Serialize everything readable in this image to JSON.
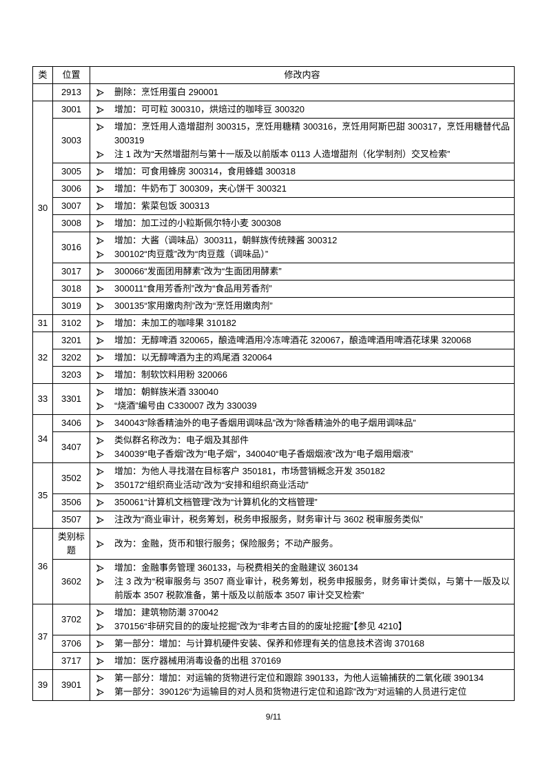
{
  "header": {
    "columns": [
      "类",
      "位置",
      "修改内容"
    ]
  },
  "groups": [
    {
      "class": null,
      "rows": [
        {
          "position": "2913",
          "items": [
            "删除：烹饪用蛋白 290001"
          ]
        }
      ]
    },
    {
      "class": "30",
      "rows": [
        {
          "position": "3001",
          "items": [
            "增加：可可粒 300310，烘焙过的咖啡豆 300320"
          ]
        },
        {
          "position": "3003",
          "items": [
            "增加：烹饪用人造增甜剂 300315，烹饪用糖精 300316，烹饪用阿斯巴甜 300317，烹饪用糖替代品 300319",
            "注 1 改为“天然增甜剂与第十一版及以前版本 0113 人造增甜剂（化学制剂）交叉检索”"
          ]
        },
        {
          "position": "3005",
          "items": [
            "增加：可食用蜂房 300314，食用蜂蜡 300318"
          ]
        },
        {
          "position": "3006",
          "items": [
            "增加：牛奶布丁 300309，夹心饼干 300321"
          ]
        },
        {
          "position": "3007",
          "items": [
            "增加：紫菜包饭 300313"
          ]
        },
        {
          "position": "3008",
          "items": [
            "增加：加工过的小粒斯佩尔特小麦 300308"
          ]
        },
        {
          "position": "3016",
          "items": [
            "增加：大酱（调味品）300311，朝鲜族传统辣酱 300312",
            "300102“肉豆蔻”改为“肉豆蔻（调味品）”"
          ]
        },
        {
          "position": "3017",
          "items": [
            "300066“发面团用酵素”改为“生面团用酵素”"
          ]
        },
        {
          "position": "3018",
          "items": [
            "300011“食用芳香剂”改为“食品用芳香剂”"
          ]
        },
        {
          "position": "3019",
          "items": [
            "300135“家用嫩肉剂”改为“烹饪用嫩肉剂”"
          ]
        }
      ]
    },
    {
      "class": "31",
      "rows": [
        {
          "position": "3102",
          "items": [
            "增加：未加工的咖啡果 310182"
          ]
        }
      ]
    },
    {
      "class": "32",
      "rows": [
        {
          "position": "3201",
          "items": [
            "增加：无醇啤酒 320065，酿造啤酒用冷冻啤酒花 320067，酿造啤酒用啤酒花球果 320068"
          ]
        },
        {
          "position": "3202",
          "items": [
            "增加：以无醇啤酒为主的鸡尾酒 320064"
          ]
        },
        {
          "position": "3203",
          "items": [
            "增加：制软饮料用粉 320066"
          ]
        }
      ]
    },
    {
      "class": "33",
      "rows": [
        {
          "position": "3301",
          "items": [
            "增加：朝鲜族米酒 330040",
            "“烧酒”编号由 C330007 改为 330039"
          ]
        }
      ]
    },
    {
      "class": "34",
      "rows": [
        {
          "position": "3406",
          "items": [
            "340043“除香精油外的电子香烟用调味品”改为“除香精油外的电子烟用调味品”"
          ]
        },
        {
          "position": "3407",
          "items": [
            "类似群名称改为：电子烟及其部件",
            "340039“电子香烟”改为“电子烟”，340040“电子香烟烟液”改为“电子烟用烟液”"
          ]
        }
      ]
    },
    {
      "class": "35",
      "rows": [
        {
          "position": "3502",
          "items": [
            "增加：为他人寻找潜在目标客户 350181，市场营销概念开发 350182",
            "350172“组织商业活动”改为“安排和组织商业活动”"
          ]
        },
        {
          "position": "3506",
          "items": [
            "350061“计算机文档管理”改为“计算机化的文档管理”"
          ]
        },
        {
          "position": "3507",
          "items": [
            "注改为“商业审计，税务筹划，税务申报服务，财务审计与 3602 税审服务类似”"
          ]
        }
      ]
    },
    {
      "class": "36",
      "rows": [
        {
          "position": "类别标题",
          "items": [
            "改为：金融，货币和银行服务；保险服务；不动产服务。"
          ]
        },
        {
          "position": "3602",
          "items": [
            "增加：金融事务管理 360133，与税费相关的金融建议 360134",
            "注 3 改为“税审服务与 3507 商业审计，税务筹划，税务申报服务，财务审计类似，与第十一版及以前版本 3507 税款准备，第十版及以前版本 3507 审计交叉检索”"
          ]
        }
      ]
    },
    {
      "class": "37",
      "rows": [
        {
          "position": "3702",
          "items": [
            "增加：建筑物防潮 370042",
            "370156“非研究目的的废址挖掘”改为“非考古目的的废址挖掘”【参见 4210】"
          ]
        },
        {
          "position": "3706",
          "items": [
            "第一部分：增加：与计算机硬件安装、保养和修理有关的信息技术咨询 370168"
          ]
        },
        {
          "position": "3717",
          "items": [
            "增加：医疗器械用消毒设备的出租 370169"
          ]
        }
      ]
    },
    {
      "class": "39",
      "rows": [
        {
          "position": "3901",
          "items": [
            "第一部分：增加：对运输的货物进行定位和跟踪 390133，为他人运输捕获的二氧化碳 390134",
            "第一部分：390126“为运输目的对人员和货物进行定位和追踪”改为“对运输的人员进行定位"
          ]
        }
      ]
    }
  ],
  "page_number": "9/11"
}
